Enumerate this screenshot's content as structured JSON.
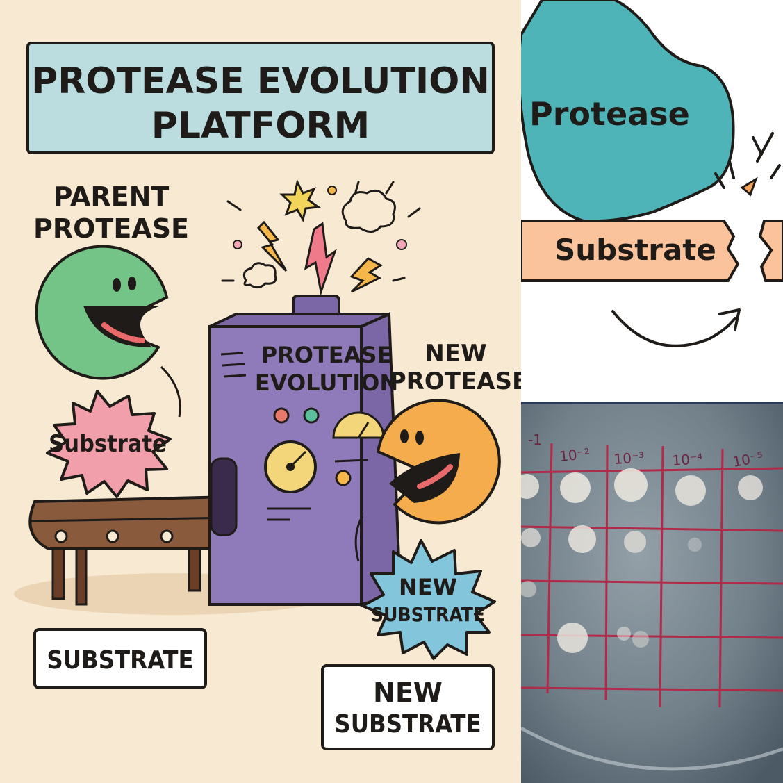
{
  "cartoon": {
    "title_line1": "PROTEASE EVOLUTION",
    "title_line2": "PLATFORM",
    "parent_label_line1": "PARENT",
    "parent_label_line2": "PROTEASE",
    "machine_label_line1": "PROTEASE",
    "machine_label_line2": "EVOLUTION",
    "new_protease_line1": "NEW",
    "new_protease_line2": "PROTEASE",
    "substrate_burst": "Substrate",
    "new_substrate_burst_line1": "NEW",
    "new_substrate_burst_line2": "SUBSTRATE",
    "substrate_box": "SUBSTRATE",
    "new_substrate_box_line1": "NEW",
    "new_substrate_box_line2": "SUBSTRATE",
    "colors": {
      "background": "#f8ead2",
      "title_box": "#bcdde0",
      "parent_protease": "#74c487",
      "new_protease": "#f4ac4c",
      "machine": "#8f7bba",
      "substrate_burst": "#f1a0ab",
      "new_substrate_burst": "#83c5da",
      "conveyor": "#8a5a3c"
    }
  },
  "schematic": {
    "protease_label": "Protease",
    "substrate_label": "Substrate",
    "colors": {
      "protease": "#4eb4b8",
      "substrate": "#fbc39c",
      "outline": "#1e1b18"
    }
  },
  "plate": {
    "dilution_labels": [
      "-1",
      "10⁻²",
      "10⁻³",
      "10⁻⁴",
      "10⁻⁵"
    ],
    "colors": {
      "agar": "#5d6c78",
      "grid_lines": "#b02a4a",
      "plaques": "#e8e4dc"
    }
  }
}
